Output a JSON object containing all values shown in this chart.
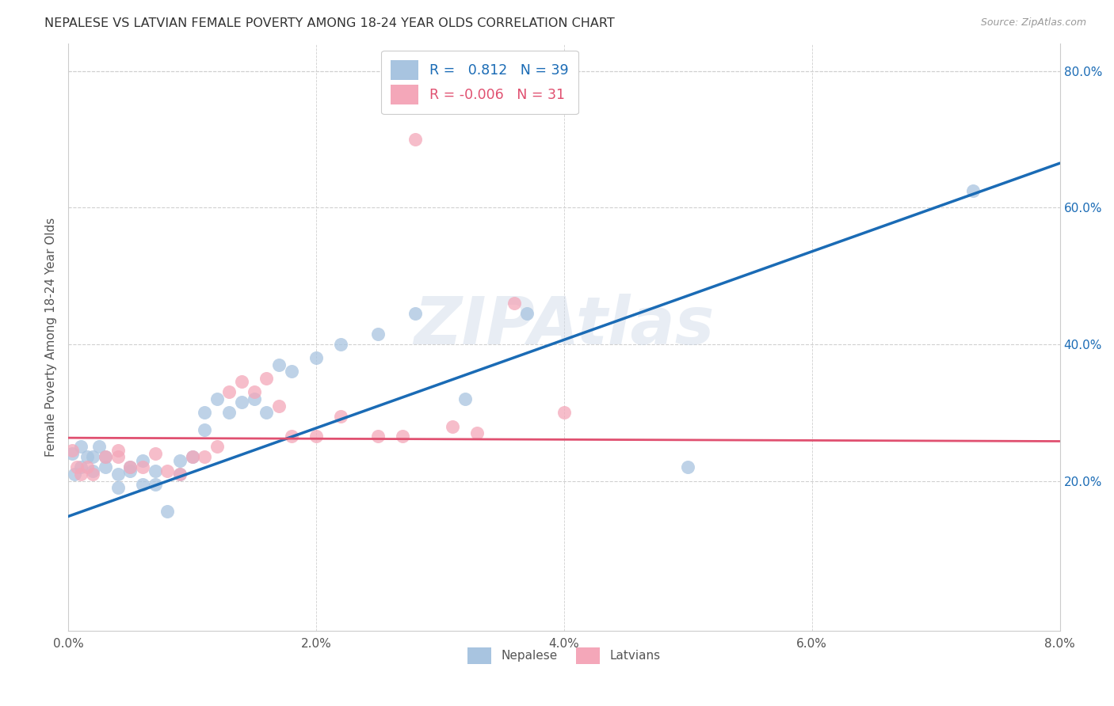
{
  "title": "NEPALESE VS LATVIAN FEMALE POVERTY AMONG 18-24 YEAR OLDS CORRELATION CHART",
  "source": "Source: ZipAtlas.com",
  "ylabel": "Female Poverty Among 18-24 Year Olds",
  "xlim": [
    0.0,
    0.08
  ],
  "ylim": [
    -0.02,
    0.84
  ],
  "plot_ylim": [
    -0.02,
    0.84
  ],
  "xticks": [
    0.0,
    0.02,
    0.04,
    0.06,
    0.08
  ],
  "yticks_right": [
    0.2,
    0.4,
    0.6,
    0.8
  ],
  "nepalese_R": 0.812,
  "nepalese_N": 39,
  "latvian_R": -0.006,
  "latvian_N": 31,
  "nepalese_color": "#a8c4e0",
  "latvian_color": "#f4a7b9",
  "nepalese_line_color": "#1a6bb5",
  "latvian_line_color": "#e05070",
  "watermark": "ZIPAtlas",
  "nepalese_x": [
    0.0003,
    0.0005,
    0.001,
    0.001,
    0.0015,
    0.002,
    0.002,
    0.0025,
    0.003,
    0.003,
    0.004,
    0.004,
    0.005,
    0.005,
    0.006,
    0.006,
    0.007,
    0.007,
    0.008,
    0.009,
    0.009,
    0.01,
    0.011,
    0.011,
    0.012,
    0.013,
    0.014,
    0.015,
    0.016,
    0.017,
    0.018,
    0.02,
    0.022,
    0.025,
    0.028,
    0.032,
    0.037,
    0.05,
    0.073
  ],
  "nepalese_y": [
    0.24,
    0.21,
    0.25,
    0.22,
    0.235,
    0.235,
    0.215,
    0.25,
    0.235,
    0.22,
    0.21,
    0.19,
    0.22,
    0.215,
    0.195,
    0.23,
    0.195,
    0.215,
    0.155,
    0.21,
    0.23,
    0.235,
    0.3,
    0.275,
    0.32,
    0.3,
    0.315,
    0.32,
    0.3,
    0.37,
    0.36,
    0.38,
    0.4,
    0.415,
    0.445,
    0.32,
    0.445,
    0.22,
    0.625
  ],
  "nepalese_line_x": [
    0.0,
    0.08
  ],
  "nepalese_line_y": [
    0.148,
    0.665
  ],
  "latvian_x": [
    0.0003,
    0.0007,
    0.001,
    0.0015,
    0.002,
    0.003,
    0.004,
    0.004,
    0.005,
    0.006,
    0.007,
    0.008,
    0.009,
    0.01,
    0.011,
    0.012,
    0.013,
    0.014,
    0.015,
    0.016,
    0.017,
    0.018,
    0.02,
    0.022,
    0.025,
    0.027,
    0.028,
    0.031,
    0.033,
    0.036,
    0.04
  ],
  "latvian_y": [
    0.245,
    0.22,
    0.21,
    0.22,
    0.21,
    0.235,
    0.245,
    0.235,
    0.22,
    0.22,
    0.24,
    0.215,
    0.21,
    0.235,
    0.235,
    0.25,
    0.33,
    0.345,
    0.33,
    0.35,
    0.31,
    0.265,
    0.265,
    0.295,
    0.265,
    0.265,
    0.7,
    0.28,
    0.27,
    0.46,
    0.3
  ],
  "latvian_line_x": [
    0.0,
    0.08
  ],
  "latvian_line_y": [
    0.263,
    0.258
  ],
  "background_color": "#ffffff",
  "grid_color": "#d0d0d0"
}
